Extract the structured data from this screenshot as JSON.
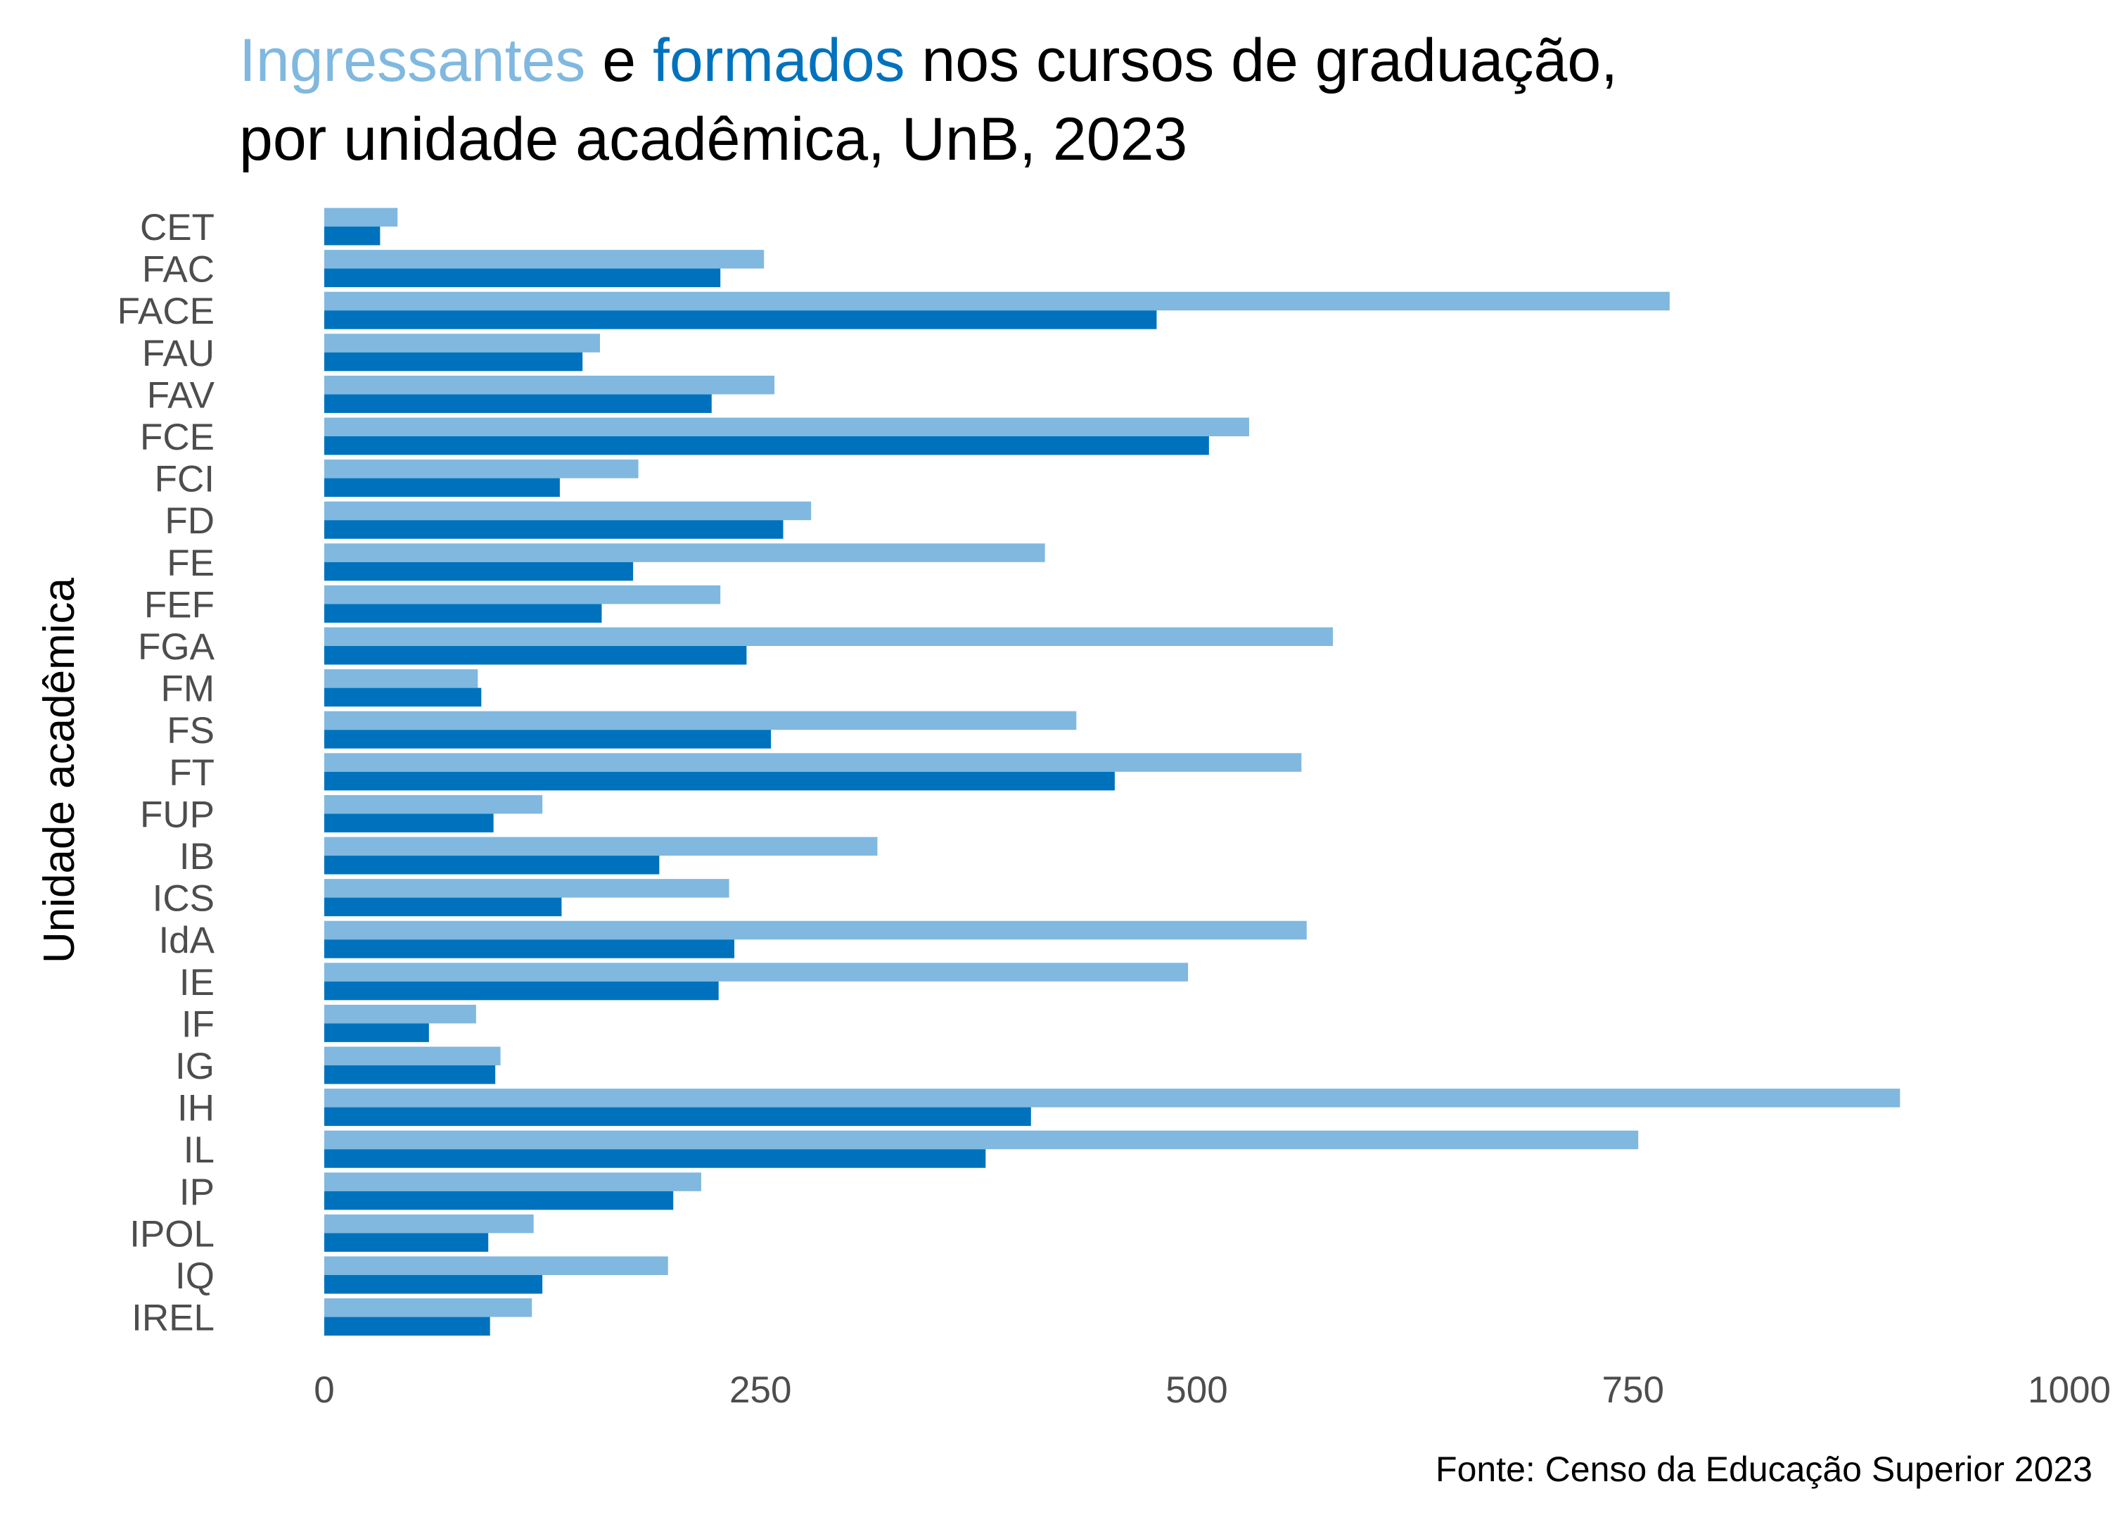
{
  "title": {
    "part1": "Ingressantes",
    "part2": " e ",
    "part3": "formados",
    "part4": " nos cursos de graduação,",
    "line2": "por unidade acadêmica, UnB, 2023"
  },
  "colors": {
    "ingressantes": "#80b8df",
    "formados": "#0072bd",
    "text": "#4d4d4d"
  },
  "caption": "Fonte: Censo da Educação Superior 2023",
  "chart_data": {
    "type": "bar",
    "orientation": "horizontal",
    "ylabel": "Unidade acadêmica",
    "xlabel": "",
    "xlim": [
      0,
      1000
    ],
    "xticks": [
      0,
      250,
      500,
      750,
      1000
    ],
    "xtick_labels": [
      "0",
      "250",
      "500",
      "750",
      "1000"
    ],
    "grid": false,
    "legend": "title-colored",
    "categories": [
      "CET",
      "FAC",
      "FACE",
      "FAU",
      "FAV",
      "FCE",
      "FCI",
      "FD",
      "FE",
      "FEF",
      "FGA",
      "FM",
      "FS",
      "FT",
      "FUP",
      "IB",
      "ICS",
      "IdA",
      "IE",
      "IF",
      "IG",
      "IH",
      "IL",
      "IP",
      "IPOL",
      "IQ",
      "IREL"
    ],
    "series": [
      {
        "name": "Ingressantes",
        "values": [
          42,
          252,
          771,
          158,
          258,
          530,
          180,
          279,
          413,
          227,
          578,
          88,
          431,
          560,
          125,
          317,
          232,
          563,
          495,
          87,
          101,
          903,
          753,
          216,
          120,
          197,
          119
        ]
      },
      {
        "name": "Formados",
        "values": [
          32,
          227,
          477,
          148,
          222,
          507,
          135,
          263,
          177,
          159,
          242,
          90,
          256,
          453,
          97,
          192,
          136,
          235,
          226,
          60,
          98,
          405,
          379,
          200,
          94,
          125,
          95
        ]
      }
    ]
  }
}
